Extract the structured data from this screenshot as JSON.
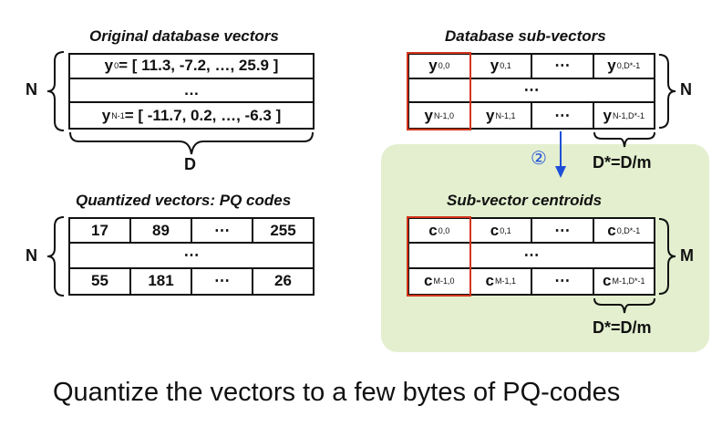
{
  "titles": {
    "original": "Original database vectors",
    "subvectors": "Database sub-vectors",
    "quantized": "Quantized vectors: PQ codes",
    "centroids": "Sub-vector centroids"
  },
  "original_table": {
    "row_first": {
      "var": "y",
      "sub": "0",
      "rest": " = [ 11.3, -7.2, …, 25.9 ]"
    },
    "row_mid": "…",
    "row_last": {
      "var": "y",
      "sub": "N-1",
      "rest": " = [ -11.7, 0.2, …, -6.3 ]"
    }
  },
  "subvector_table": {
    "first_row": [
      {
        "var": "y",
        "sub": "0,0"
      },
      {
        "var": "y",
        "sub": "0,1"
      },
      {
        "var": "",
        "sub": "",
        "text": "⋯"
      },
      {
        "var": "y",
        "sub": "0,D*-1"
      }
    ],
    "mid": "⋯",
    "last_row": [
      {
        "var": "y",
        "sub": "N-1,0"
      },
      {
        "var": "y",
        "sub": "N-1,1"
      },
      {
        "var": "",
        "sub": "",
        "text": "⋯"
      },
      {
        "var": "y",
        "sub": "N-1,D*-1"
      }
    ]
  },
  "pq_table": {
    "first_row": [
      "17",
      "89",
      "⋯",
      "255"
    ],
    "mid": "⋯",
    "last_row": [
      "55",
      "181",
      "⋯",
      "26"
    ]
  },
  "centroid_table": {
    "first_row": [
      {
        "var": "c",
        "sub": "0,0"
      },
      {
        "var": "c",
        "sub": "0,1"
      },
      {
        "var": "",
        "sub": "",
        "text": "⋯"
      },
      {
        "var": "c",
        "sub": "0,D*-1"
      }
    ],
    "mid": "⋯",
    "last_row": [
      {
        "var": "c",
        "sub": "M-1,0"
      },
      {
        "var": "c",
        "sub": "M-1,1"
      },
      {
        "var": "",
        "sub": "",
        "text": "⋯"
      },
      {
        "var": "c",
        "sub": "M-1,D*-1"
      }
    ]
  },
  "labels": {
    "n_left_top": "N",
    "n_left_bottom": "N",
    "n_right": "N",
    "m_right": "M",
    "d": "D",
    "dstar_top": "D*=D/m",
    "dstar_bottom": "D*=D/m",
    "step": "②"
  },
  "caption": "Quantize the vectors to a few bytes of PQ-codes",
  "colors": {
    "highlight": "#d4351c",
    "panel": "#e3efcf",
    "arrow": "#1f4fd8"
  }
}
